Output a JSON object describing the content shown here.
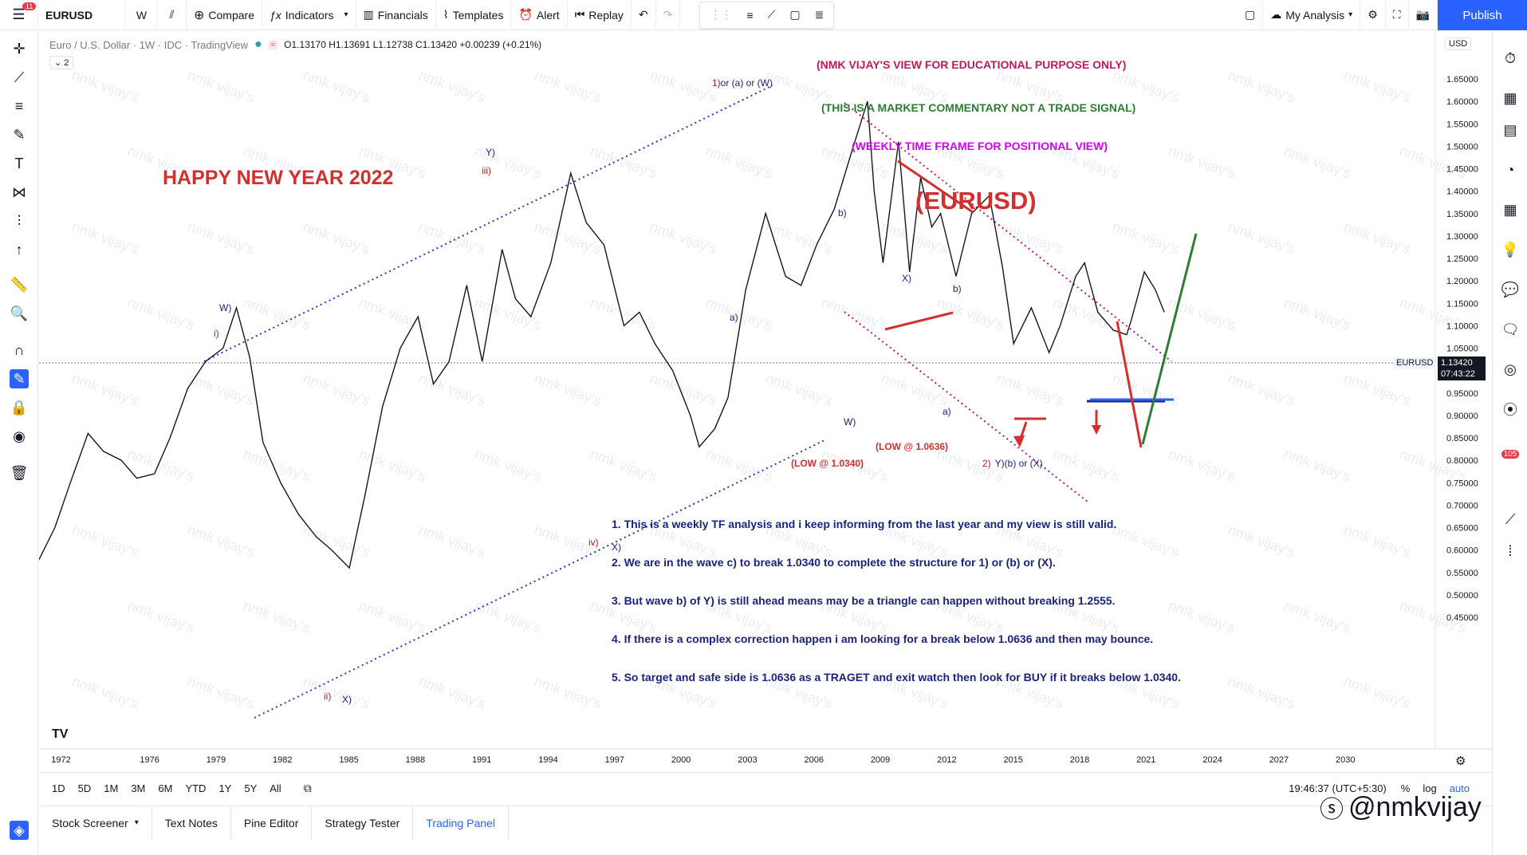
{
  "toolbar": {
    "menu_badge": "11",
    "symbol": "EURUSD",
    "interval": "W",
    "compare": "Compare",
    "indicators": "Indicators",
    "financials": "Financials",
    "templates": "Templates",
    "alert": "Alert",
    "replay": "Replay",
    "my_analysis": "My Analysis",
    "publish": "Publish"
  },
  "legend": {
    "title": "Euro / U.S. Dollar · 1W · IDC · TradingView",
    "open": "O1.13170",
    "high": "H1.13691",
    "low": "L1.12738",
    "close": "C1.13420",
    "change": "+0.00239 (+0.21%)",
    "indicator_count": "2"
  },
  "price_scale": {
    "currency": "USD",
    "current_symbol": "EURUSD",
    "current_price": "1.13420",
    "countdown": "07:43:22"
  },
  "chart_data": {
    "type": "line",
    "title": "",
    "x_ticks": [
      "1972",
      "1976",
      "1979",
      "1982",
      "1985",
      "1988",
      "1991",
      "1994",
      "1997",
      "2000",
      "2003",
      "2006",
      "2009",
      "2012",
      "2015",
      "2018",
      "2021",
      "2024",
      "2027",
      "2030"
    ],
    "y_ticks": [
      "1.65000",
      "1.60000",
      "1.55000",
      "1.50000",
      "1.45000",
      "1.40000",
      "1.35000",
      "1.30000",
      "1.25000",
      "1.20000",
      "1.15000",
      "1.10000",
      "1.05000",
      "1.00000",
      "0.95000",
      "0.90000",
      "0.85000",
      "0.80000",
      "0.75000",
      "0.70000",
      "0.65000",
      "0.60000",
      "0.55000",
      "0.50000",
      "0.45000"
    ],
    "ylim": [
      0.45,
      1.65
    ],
    "series": [
      {
        "x": [
          1971.0,
          1971.8,
          1972.5,
          1973.3,
          1974.0,
          1974.8,
          1975.5,
          1976.3,
          1977.0,
          1977.8,
          1978.6,
          1979.4,
          1980.0,
          1980.6,
          1981.2,
          1982.0,
          1982.8,
          1983.6,
          1984.3,
          1985.1,
          1985.8,
          1986.6,
          1987.4,
          1988.2,
          1988.9,
          1989.6,
          1990.4,
          1991.1,
          1992.0,
          1992.6,
          1993.3,
          1994.2,
          1995.1,
          1995.8,
          1996.6,
          1997.5,
          1998.2,
          1998.9,
          1999.7,
          2000.5,
          2000.9,
          2001.6,
          2002.2,
          2003.0,
          2003.9,
          2004.8,
          2005.5,
          2006.2,
          2007.0,
          2007.8,
          2008.5,
          2008.8,
          2009.2,
          2009.9,
          2010.4,
          2010.9,
          2011.4,
          2011.8,
          2012.5,
          2013.2,
          2014.0,
          2014.6,
          2015.1,
          2015.9,
          2016.7,
          2017.2,
          2017.9,
          2018.3,
          2018.9,
          2019.6,
          2020.2,
          2020.4,
          2021.0,
          2021.5,
          2021.9
        ],
        "y": [
          0.57,
          0.65,
          0.75,
          0.86,
          0.82,
          0.8,
          0.76,
          0.77,
          0.85,
          0.96,
          1.02,
          1.05,
          1.14,
          1.03,
          0.84,
          0.75,
          0.68,
          0.63,
          0.6,
          0.56,
          0.72,
          0.92,
          1.05,
          1.12,
          0.97,
          1.02,
          1.19,
          1.02,
          1.27,
          1.16,
          1.12,
          1.24,
          1.44,
          1.33,
          1.28,
          1.1,
          1.13,
          1.06,
          1.0,
          0.9,
          0.83,
          0.87,
          0.94,
          1.18,
          1.35,
          1.21,
          1.19,
          1.28,
          1.36,
          1.49,
          1.6,
          1.4,
          1.24,
          1.51,
          1.22,
          1.43,
          1.32,
          1.35,
          1.21,
          1.35,
          1.39,
          1.23,
          1.06,
          1.14,
          1.04,
          1.1,
          1.21,
          1.24,
          1.13,
          1.09,
          1.08,
          1.11,
          1.22,
          1.18,
          1.13
        ]
      }
    ]
  },
  "annotations": {
    "happy": "HAPPY NEW YEAR 2022",
    "header1": "(NMK VIJAY'S VIEW FOR EDUCATIONAL PURPOSE ONLY)",
    "header2": "(THIS IS A MARKET COMMENTARY NOT A TRADE SIGNAL)",
    "header3": "(WEEKLY TIME FRAME FOR POSITIONAL VIEW)",
    "symbol_big": "(EURUSD)",
    "low1": "(LOW @ 1.0340)",
    "low2": "(LOW @ 1.0636)",
    "notes": [
      "1. This is a weekly TF analysis and i keep informing from the last year and my view is still valid.",
      "2. We are in the wave c) to break 1.0340 to complete the structure for 1) or (b) or (X).",
      "3. But wave b) of Y) is still ahead means may be a triangle can happen without breaking 1.2555.",
      "4. If there is a complex correction happen i am looking for a break below 1.0636 and then may bounce.",
      "5. So target and safe side is 1.0636 as a TRAGET and exit watch then look for BUY if it breaks below 1.0340."
    ],
    "waves": {
      "w": "W)",
      "i": "i)",
      "y": "Y)",
      "iii": "iii)",
      "ii": "ii)",
      "x1": "X)",
      "iv": "iv)",
      "x2": "X)",
      "one": "1)",
      "one_rest": "or (a) or (W)",
      "a1": "a)",
      "b1": "b)",
      "x3": "X)",
      "b2": "b)",
      "w2": "W)",
      "a2": "a)",
      "two": "2)",
      "two_rest": "Y)(b) or (X)"
    },
    "watermark": "nmk vijay's"
  },
  "bottom": {
    "ranges": [
      "1D",
      "5D",
      "1M",
      "3M",
      "6M",
      "YTD",
      "1Y",
      "5Y",
      "All"
    ],
    "time": "19:46:37 (UTC+5:30)",
    "pct": "%",
    "log": "log",
    "auto": "auto"
  },
  "panels": {
    "tabs": [
      "Stock Screener",
      "Text Notes",
      "Pine Editor",
      "Strategy Tester",
      "Trading Panel"
    ]
  },
  "brand": "@nmkvijay",
  "alerts_badge": "105"
}
